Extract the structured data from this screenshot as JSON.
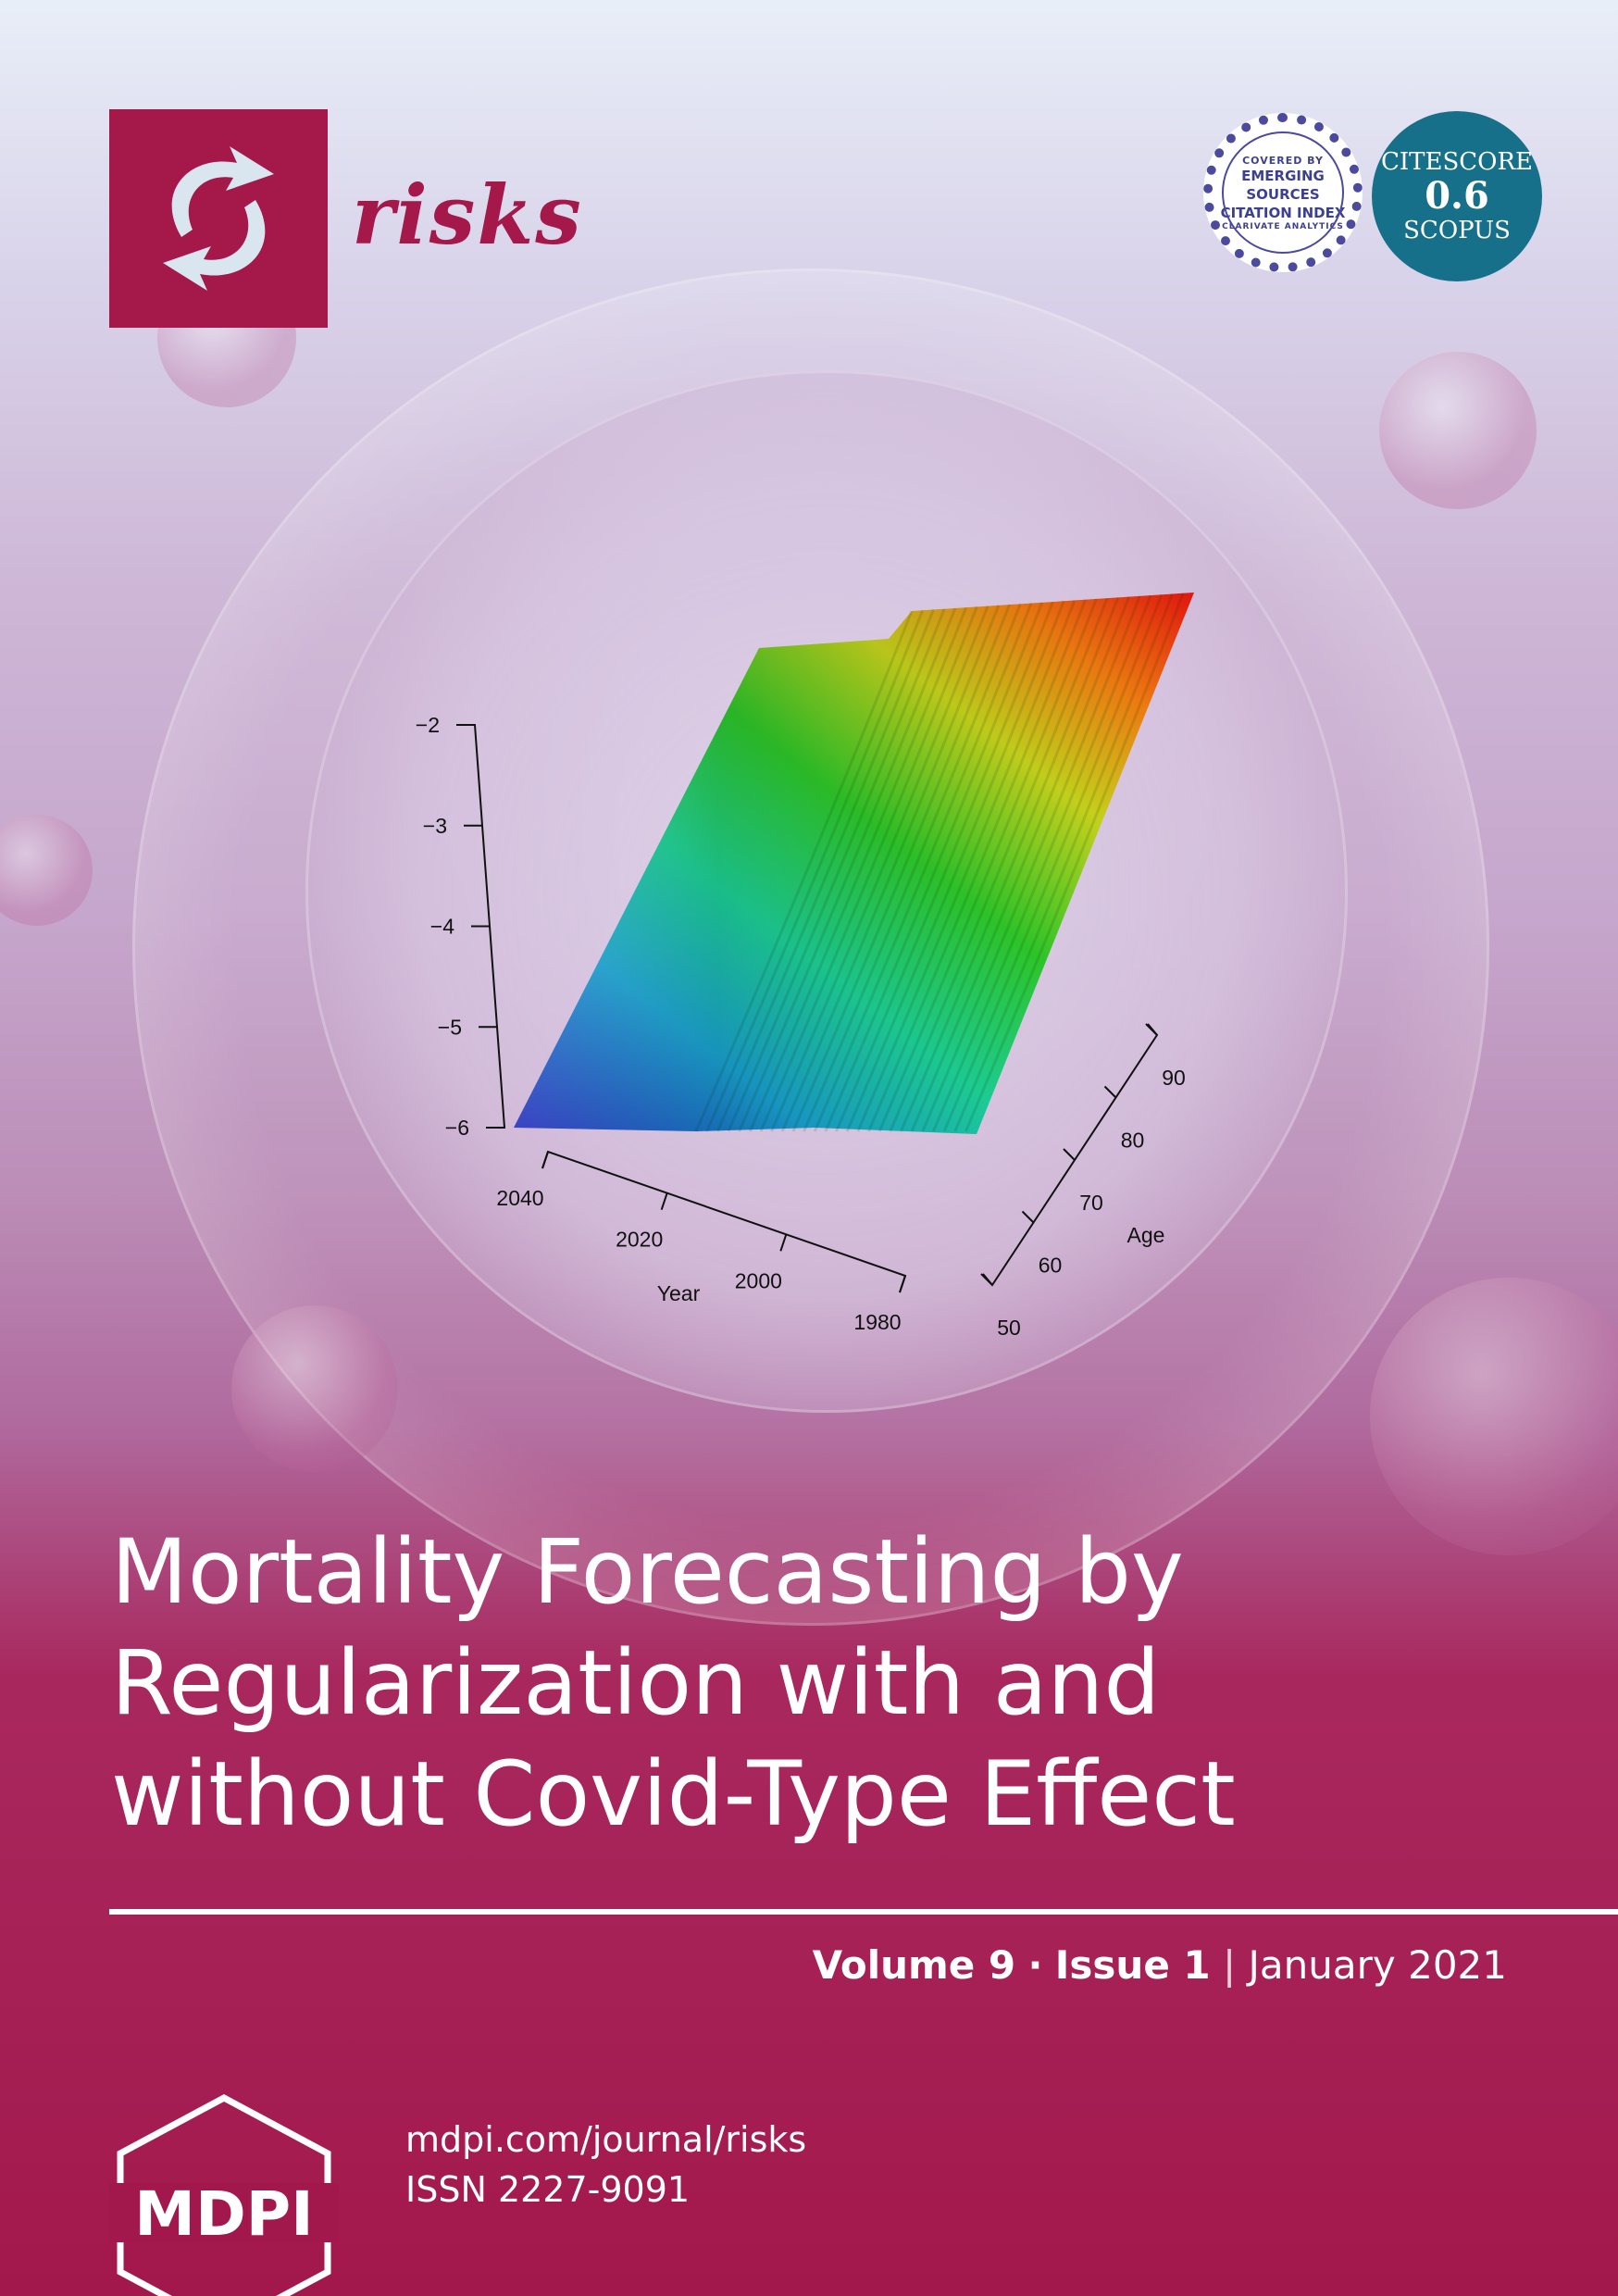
{
  "journal": {
    "name": "risks",
    "accent_color": "#a4184a",
    "logo_icon": "circular-arrows-icon"
  },
  "badges": {
    "esci": {
      "top": "COVERED BY",
      "line1": "EMERGING",
      "line2": "SOURCES",
      "line3": "CITATION INDEX",
      "bottom": "CLARIVATE ANALYTICS",
      "color": "#3d3f8f"
    },
    "citescore": {
      "label": "CITESCORE",
      "value": "0.6",
      "source": "SCOPUS",
      "color": "#17708a"
    }
  },
  "chart_data": {
    "type": "surface3d",
    "title": "",
    "zlabel": "",
    "zticks": [
      "−2",
      "−3",
      "−4",
      "−5",
      "−6"
    ],
    "xlabel": "Year",
    "xticks": [
      "2040",
      "2020",
      "2000",
      "1980"
    ],
    "ylabel": "Age",
    "yticks": [
      "50",
      "60",
      "70",
      "80",
      "90"
    ],
    "zlim": [
      -6,
      -2
    ],
    "xlim": [
      1980,
      2040
    ],
    "ylim": [
      50,
      90
    ],
    "colormap": [
      "#1a1fb8",
      "#1aa6d6",
      "#1ed69a",
      "#2fcc2a",
      "#c9d51c",
      "#f07a10",
      "#e0140e"
    ]
  },
  "article": {
    "title_line1": "Mortality Forecasting by",
    "title_line2": "Regularization with and",
    "title_line3": "without Covid-Type Effect"
  },
  "issue": {
    "volume": "Volume 9",
    "separator": "·",
    "number": "Issue 1",
    "divider": "|",
    "date": "January 2021"
  },
  "publisher": {
    "name": "MDPI",
    "url": "mdpi.com/journal/risks",
    "issn": "ISSN 2227-9091"
  }
}
